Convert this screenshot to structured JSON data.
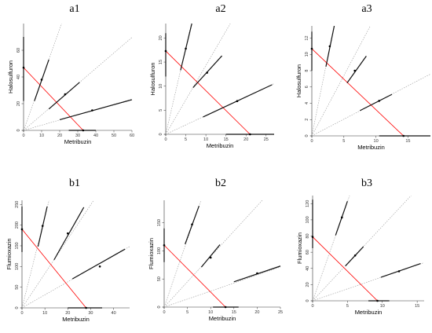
{
  "chart_data": [
    {
      "panel_label": "a1",
      "type": "line",
      "xlabel": "Metribuzin",
      "ylabel": "Halosulfuron",
      "xlim": [
        0,
        60
      ],
      "ylim": [
        0,
        80
      ],
      "xticks": [
        0,
        10,
        20,
        30,
        40,
        50,
        60
      ],
      "yticks": [
        0,
        20,
        40,
        60
      ],
      "isobole": {
        "x_intercept": 33,
        "y_intercept": 47
      },
      "rays": [
        {
          "slope": 3.8,
          "point": [
            10,
            38
          ],
          "ci": [
            [
              6,
              22
            ],
            [
              14,
              53
            ]
          ]
        },
        {
          "slope": 1.16,
          "point": [
            23,
            27
          ],
          "ci": [
            [
              14,
              16
            ],
            [
              31,
              36
            ]
          ]
        },
        {
          "slope": 0.39,
          "point": [
            38,
            15
          ],
          "ci": [
            [
              20,
              8
            ],
            [
              60,
              23
            ]
          ]
        }
      ],
      "axis_ci": {
        "x": [
          25,
          40
        ],
        "y": [
          22,
          70
        ]
      }
    },
    {
      "panel_label": "a2",
      "type": "line",
      "xlabel": "Metribuzin",
      "ylabel": "Halosulfuron",
      "xlim": [
        0,
        27
      ],
      "ylim": [
        0,
        23
      ],
      "xticks": [
        0,
        5,
        10,
        15,
        20,
        25
      ],
      "yticks": [
        0,
        5,
        10,
        15,
        20
      ],
      "isobole": {
        "x_intercept": 21,
        "y_intercept": 17.3
      },
      "rays": [
        {
          "slope": 3.6,
          "point": [
            5,
            17.8
          ],
          "ci": [
            [
              3.7,
              13.3
            ],
            [
              6.5,
              23
            ]
          ]
        },
        {
          "slope": 1.43,
          "point": [
            10.3,
            12.8
          ],
          "ci": [
            [
              6.8,
              9.7
            ],
            [
              14,
              16.3
            ]
          ]
        },
        {
          "slope": 0.39,
          "point": [
            17.8,
            6.9
          ],
          "ci": [
            [
              9.3,
              3.6
            ],
            [
              26.5,
              10.3
            ]
          ]
        }
      ],
      "axis_ci": {
        "x": [
          15,
          27
        ],
        "y": [
          12,
          21
        ]
      }
    },
    {
      "panel_label": "a3",
      "type": "line",
      "xlabel": "Metribuzin",
      "ylabel": "Halosulfuron",
      "xlim": [
        0,
        18.5
      ],
      "ylim": [
        0,
        13.5
      ],
      "xticks": [
        0,
        5,
        10,
        15
      ],
      "yticks": [
        0,
        2,
        4,
        6,
        8,
        10,
        12
      ],
      "isobole": {
        "x_intercept": 14.3,
        "y_intercept": 10.7
      },
      "rays": [
        {
          "slope": 3.9,
          "point": [
            2.8,
            11
          ],
          "ci": [
            [
              2.2,
              8.5
            ],
            [
              3.5,
              13.5
            ]
          ]
        },
        {
          "slope": 1.48,
          "point": [
            6.7,
            8
          ],
          "ci": [
            [
              5.5,
              6.5
            ],
            [
              8.5,
              9.8
            ]
          ]
        },
        {
          "slope": 0.41,
          "point": [
            10.5,
            4.3
          ],
          "ci": [
            [
              7.5,
              3.1
            ],
            [
              12.5,
              5.1
            ]
          ]
        }
      ],
      "axis_ci": {
        "x": [
          10.5,
          18.5
        ],
        "y": [
          8,
          12.8
        ]
      }
    },
    {
      "panel_label": "b1",
      "type": "line",
      "xlabel": "Metribuzin",
      "ylabel": "Flumioxazin",
      "xlim": [
        0,
        47
      ],
      "ylim": [
        0,
        260
      ],
      "xticks": [
        0,
        10,
        20,
        30,
        40
      ],
      "yticks": [
        0,
        50,
        100,
        150,
        200,
        250
      ],
      "isobole": {
        "x_intercept": 28,
        "y_intercept": 190
      },
      "rays": [
        {
          "slope": 22,
          "point": [
            9,
            198
          ],
          "ci": [
            [
              7,
              148
            ],
            [
              11,
              245
            ]
          ]
        },
        {
          "slope": 8.3,
          "point": [
            20,
            180
          ],
          "ci": [
            [
              14,
              116
            ],
            [
              27,
              243
            ]
          ]
        },
        {
          "slope": 3.15,
          "point": [
            34,
            100
          ],
          "ci": [
            [
              22,
              70
            ],
            [
              45,
              142
            ]
          ]
        }
      ],
      "axis_ci": {
        "x": [
          20,
          35
        ],
        "y": [
          135,
          245
        ]
      }
    },
    {
      "panel_label": "b2",
      "type": "line",
      "xlabel": "Metribuzin",
      "ylabel": "Flumioxazin",
      "xlim": [
        0,
        25
      ],
      "ylim": [
        0,
        190
      ],
      "xticks": [
        0,
        5,
        10,
        15,
        20,
        25
      ],
      "yticks": [
        0,
        50,
        100,
        150
      ],
      "isobole": {
        "x_intercept": 13.2,
        "y_intercept": 110
      },
      "rays": [
        {
          "slope": 24,
          "point": [
            6,
            147
          ],
          "ci": [
            [
              4.5,
              112
            ],
            [
              7.5,
              180
            ]
          ]
        },
        {
          "slope": 9,
          "point": [
            10,
            88
          ],
          "ci": [
            [
              8,
              71
            ],
            [
              12,
              111
            ]
          ]
        },
        {
          "slope": 2.85,
          "point": [
            20,
            60
          ],
          "ci": [
            [
              15,
              45
            ],
            [
              25,
              73
            ]
          ]
        }
      ],
      "axis_ci": {
        "x": [
          10.5,
          16
        ],
        "y": [
          80,
          140
        ]
      }
    },
    {
      "panel_label": "b3",
      "type": "line",
      "xlabel": "Metribuzin",
      "ylabel": "Flumioxazin",
      "xlim": [
        0,
        16
      ],
      "ylim": [
        0,
        130
      ],
      "xticks": [
        0,
        5,
        10,
        15
      ],
      "yticks": [
        0,
        20,
        40,
        60,
        80,
        100,
        120
      ],
      "isobole": {
        "x_intercept": 9.3,
        "y_intercept": 79
      },
      "rays": [
        {
          "slope": 24.5,
          "point": [
            4.2,
            103
          ],
          "ci": [
            [
              3.3,
              81
            ],
            [
              5,
              123
            ]
          ]
        },
        {
          "slope": 9.2,
          "point": [
            6.1,
            56
          ],
          "ci": [
            [
              4.7,
              43
            ],
            [
              7.3,
              67
            ]
          ]
        },
        {
          "slope": 2.95,
          "point": [
            12.4,
            36.5
          ],
          "ci": [
            [
              9.8,
              29
            ],
            [
              15.5,
              46
            ]
          ]
        }
      ],
      "axis_ci": {
        "x": [
          8,
          11
        ],
        "y": [
          65,
          125
        ]
      }
    }
  ],
  "colors": {
    "isobole": "#ff0000",
    "ray": "#999999",
    "ci": "#111111",
    "axis": "#333333",
    "point": "#000000"
  }
}
